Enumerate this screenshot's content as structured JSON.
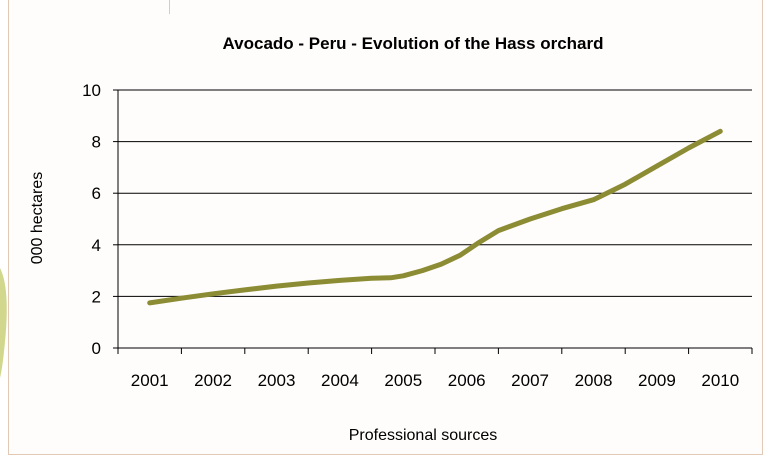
{
  "chart_data": {
    "type": "line",
    "title": "Avocado - Peru - Evolution of the Hass orchard",
    "xlabel": "Professional sources",
    "ylabel": "000 hectares",
    "categories": [
      "2001",
      "2002",
      "2003",
      "2004",
      "2005",
      "2006",
      "2007",
      "2008",
      "2009",
      "2010"
    ],
    "ylim": [
      0,
      10
    ],
    "yticks": [
      "0",
      "2",
      "4",
      "6",
      "8",
      "10"
    ],
    "grid": true,
    "legend": "none",
    "series": [
      {
        "x": [
          2001,
          2001.5,
          2002,
          2002.5,
          2003,
          2003.5,
          2004,
          2004.5,
          2004.8,
          2005,
          2005.3,
          2005.6,
          2005.9,
          2006.2,
          2006.5,
          2007,
          2007.5,
          2008,
          2008.5,
          2009,
          2009.5,
          2010
        ],
        "values": [
          1.75,
          1.93,
          2.1,
          2.25,
          2.4,
          2.52,
          2.62,
          2.7,
          2.72,
          2.8,
          3.0,
          3.25,
          3.6,
          4.1,
          4.55,
          5.0,
          5.4,
          5.75,
          6.35,
          7.05,
          7.75,
          8.4
        ]
      }
    ],
    "line_color": "#8c8c34"
  }
}
